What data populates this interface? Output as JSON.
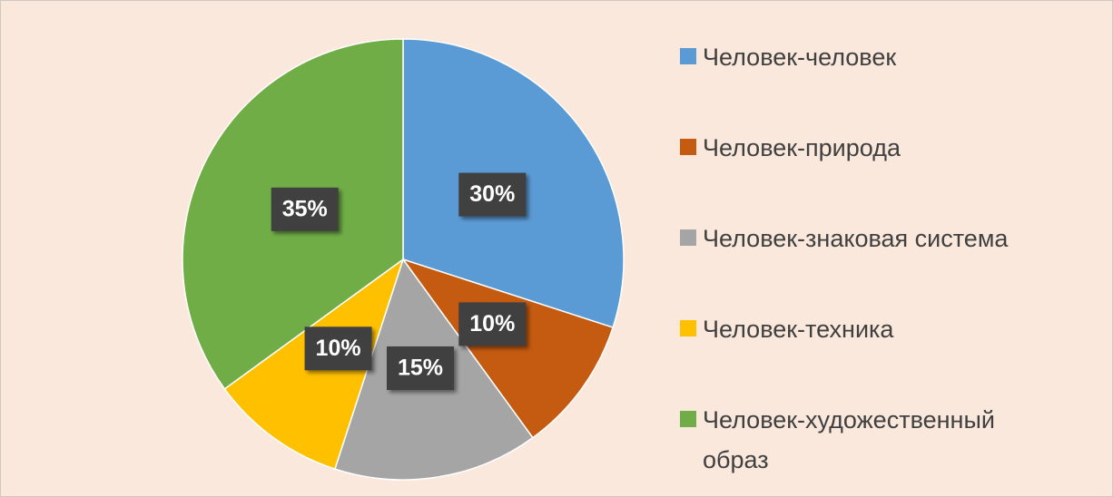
{
  "chart_data": {
    "type": "pie",
    "categories": [
      "Человек-человек",
      "Человек-природа",
      "Человек-знаковая система",
      "Человек-техника",
      "Человек-художественный образ"
    ],
    "values": [
      30,
      10,
      15,
      10,
      35
    ],
    "value_labels": [
      "30%",
      "10%",
      "15%",
      "10%",
      "35%"
    ],
    "colors": [
      "#5b9bd5",
      "#c55a11",
      "#a5a5a5",
      "#ffc000",
      "#70ad47"
    ],
    "legend": "right"
  }
}
